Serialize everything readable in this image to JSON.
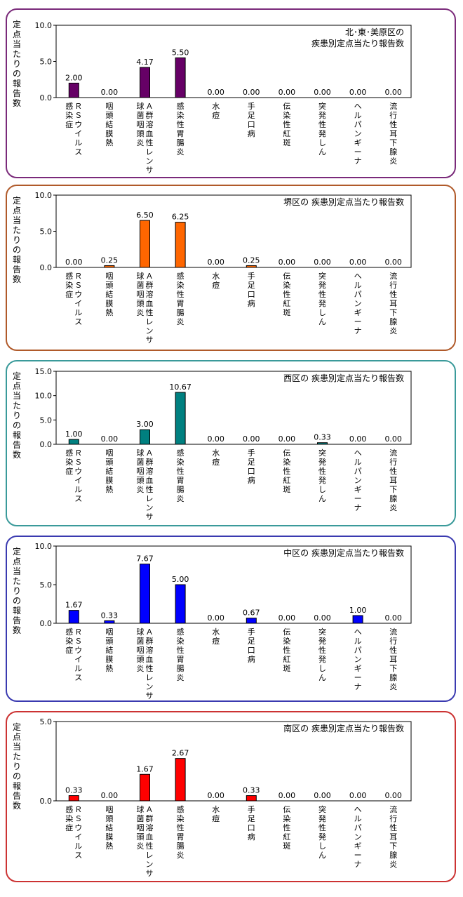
{
  "categories": [
    "ＲＳウイルス感染症",
    "咽頭結膜熱",
    "Ａ群溶血性レンサ球菌咽頭炎",
    "感染性胃腸炎",
    "水痘",
    "手足口病",
    "伝染性紅斑",
    "突発性発しん",
    "ヘルパンギーナ",
    "流行性耳下腺炎"
  ],
  "category_lines": [
    [
      "ＲＳウイルス",
      "感染症"
    ],
    [
      "咽頭結膜熱"
    ],
    [
      "Ａ群溶血性レンサ",
      "球菌咽頭炎"
    ],
    [
      "感染性胃腸炎"
    ],
    [
      "水痘"
    ],
    [
      "手足口病"
    ],
    [
      "伝染性紅斑"
    ],
    [
      "突発性発しん"
    ],
    [
      "ヘルパンギーナ"
    ],
    [
      "流行性耳下腺炎"
    ]
  ],
  "ylabel": "定点当たりの報告数",
  "chart_data": [
    {
      "type": "bar",
      "title_lines": [
        "北･東･美原区の",
        "疾患別定点当たり報告数"
      ],
      "ylabel": "定点当たりの報告数",
      "ylim": [
        0,
        10
      ],
      "yticks": [
        "0.0",
        "5.0",
        "10.0"
      ],
      "values": [
        2.0,
        0.0,
        4.17,
        5.5,
        0.0,
        0.0,
        0.0,
        0.0,
        0.0,
        0.0
      ],
      "labels": [
        "2.00",
        "0.00",
        "4.17",
        "5.50",
        "0.00",
        "0.00",
        "0.00",
        "0.00",
        "0.00",
        "0.00"
      ],
      "color": "#660066",
      "border_color": "#7a2a7a"
    },
    {
      "type": "bar",
      "title_lines": [
        "堺区の 疾患別定点当たり報告数"
      ],
      "ylabel": "定点当たりの報告数",
      "ylim": [
        0,
        10
      ],
      "yticks": [
        "0.0",
        "5.0",
        "10.0"
      ],
      "values": [
        0.0,
        0.25,
        6.5,
        6.25,
        0.0,
        0.25,
        0.0,
        0.0,
        0.0,
        0.0
      ],
      "labels": [
        "0.00",
        "0.25",
        "6.50",
        "6.25",
        "0.00",
        "0.25",
        "0.00",
        "0.00",
        "0.00",
        "0.00"
      ],
      "color": "#ff6600",
      "border_color": "#b05a2a"
    },
    {
      "type": "bar",
      "title_lines": [
        "西区の 疾患別定点当たり報告数"
      ],
      "ylabel": "定点当たりの報告数",
      "ylim": [
        0,
        15
      ],
      "yticks": [
        "0.0",
        "5.0",
        "10.0",
        "15.0"
      ],
      "values": [
        1.0,
        0.0,
        3.0,
        10.67,
        0.0,
        0.0,
        0.0,
        0.33,
        0.0,
        0.0
      ],
      "labels": [
        "1.00",
        "0.00",
        "3.00",
        "10.67",
        "0.00",
        "0.00",
        "0.00",
        "0.33",
        "0.00",
        "0.00"
      ],
      "color": "#008080",
      "border_color": "#3a9a9a"
    },
    {
      "type": "bar",
      "title_lines": [
        "中区の 疾患別定点当たり報告数"
      ],
      "ylabel": "定点当たりの報告数",
      "ylim": [
        0,
        10
      ],
      "yticks": [
        "0.0",
        "5.0",
        "10.0"
      ],
      "values": [
        1.67,
        0.33,
        7.67,
        5.0,
        0.0,
        0.67,
        0.0,
        0.0,
        1.0,
        0.0
      ],
      "labels": [
        "1.67",
        "0.33",
        "7.67",
        "5.00",
        "0.00",
        "0.67",
        "0.00",
        "0.00",
        "1.00",
        "0.00"
      ],
      "color": "#0000ff",
      "border_color": "#3a3ab0"
    },
    {
      "type": "bar",
      "title_lines": [
        "南区の 疾患別定点当たり報告数"
      ],
      "ylabel": "定点当たりの報告数",
      "ylim": [
        0,
        5
      ],
      "yticks": [
        "0.0",
        "5.0"
      ],
      "values": [
        0.33,
        0.0,
        1.67,
        2.67,
        0.0,
        0.33,
        0.0,
        0.0,
        0.0,
        0.0
      ],
      "labels": [
        "0.33",
        "0.00",
        "1.67",
        "2.67",
        "0.00",
        "0.33",
        "0.00",
        "0.00",
        "0.00",
        "0.00"
      ],
      "color": "#ff0000",
      "border_color": "#cc3333"
    }
  ]
}
